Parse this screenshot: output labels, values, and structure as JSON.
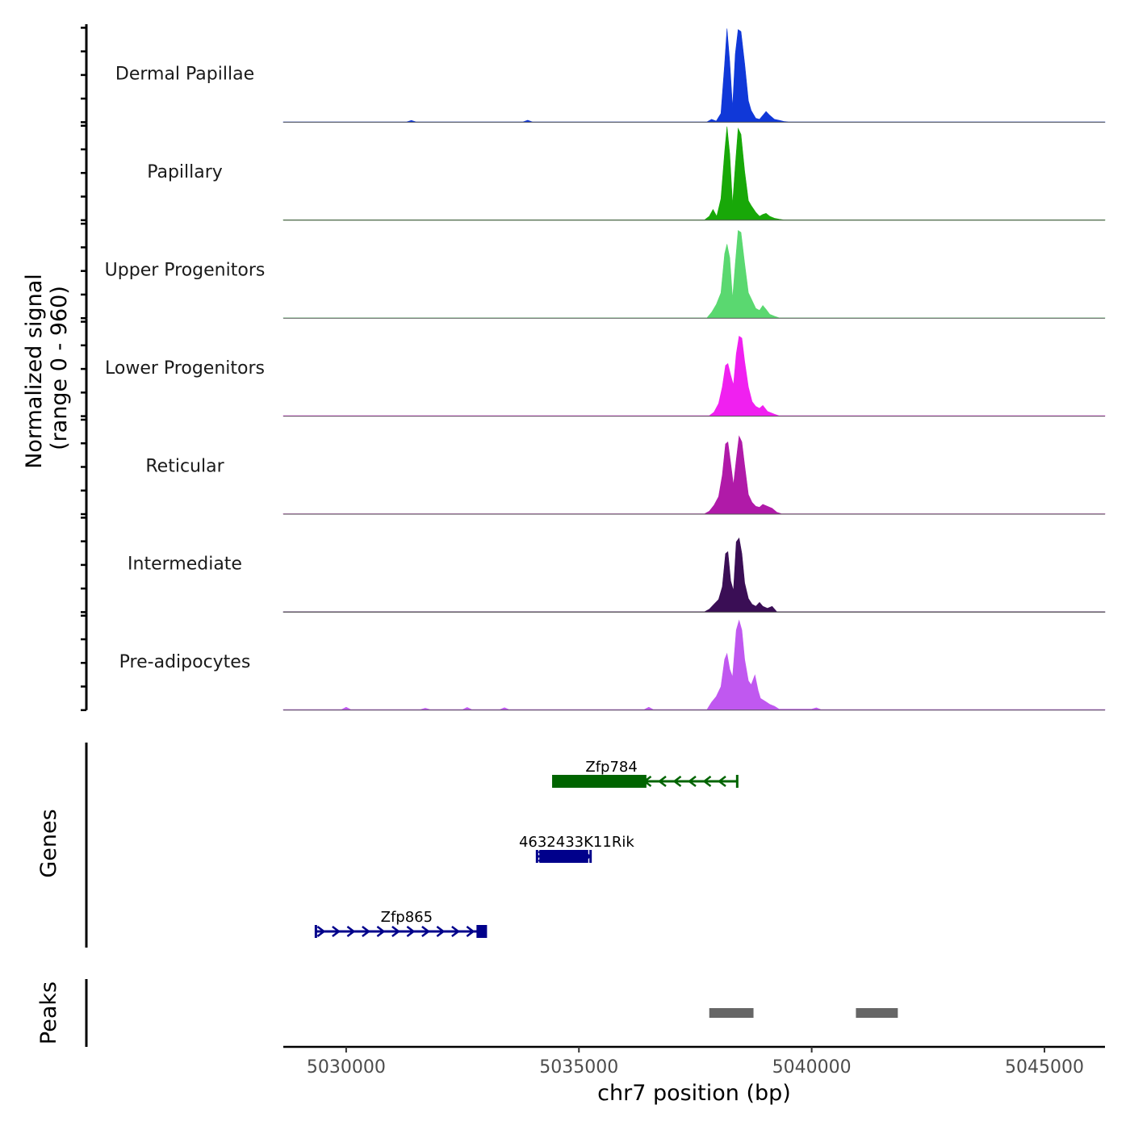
{
  "chart_data": {
    "type": "area",
    "title": "",
    "ylabel_line1": "Normalized signal",
    "ylabel_line2": "(range 0 - 960)",
    "xlabel": "chr7 position (bp)",
    "xlim": [
      5028650,
      5046300
    ],
    "x_ticks": [
      5030000,
      5035000,
      5040000,
      5045000
    ],
    "x_tick_labels": [
      "5030000",
      "5035000",
      "5040000",
      "5045000"
    ],
    "ylim": [
      0,
      960
    ],
    "tracks": [
      {
        "name": "Dermal Papillae",
        "color": "#1038d8",
        "x": [
          5028650,
          5031300,
          5031400,
          5031500,
          5033800,
          5033900,
          5034000,
          5037750,
          5037850,
          5037950,
          5038050,
          5038130,
          5038180,
          5038240,
          5038300,
          5038360,
          5038420,
          5038480,
          5038560,
          5038640,
          5038700,
          5038800,
          5038880,
          5038950,
          5039020,
          5039100,
          5039200,
          5039300,
          5039400,
          5039500,
          5046300
        ],
        "y": [
          3,
          3,
          18,
          3,
          3,
          20,
          3,
          3,
          30,
          12,
          90,
          600,
          960,
          620,
          150,
          700,
          950,
          930,
          600,
          220,
          120,
          40,
          30,
          70,
          110,
          70,
          30,
          20,
          8,
          3,
          3
        ]
      },
      {
        "name": "Papillary",
        "color": "#18a808",
        "x": [
          5028650,
          5037700,
          5037800,
          5037880,
          5037960,
          5038050,
          5038130,
          5038180,
          5038240,
          5038300,
          5038360,
          5038420,
          5038480,
          5038560,
          5038640,
          5038700,
          5038800,
          5038880,
          5038950,
          5039020,
          5039100,
          5039200,
          5039300,
          5039400,
          5046300
        ],
        "y": [
          3,
          3,
          40,
          110,
          40,
          220,
          700,
          960,
          680,
          160,
          560,
          940,
          880,
          500,
          200,
          150,
          80,
          40,
          60,
          70,
          40,
          20,
          10,
          3,
          3
        ]
      },
      {
        "name": "Upper Progenitors",
        "color": "#5ad870",
        "x": [
          5028650,
          5037750,
          5037850,
          5037950,
          5038050,
          5038130,
          5038180,
          5038240,
          5038300,
          5038360,
          5038420,
          5038480,
          5038560,
          5038640,
          5038700,
          5038800,
          5038880,
          5038950,
          5039020,
          5039100,
          5039200,
          5039300,
          5046300
        ],
        "y": [
          3,
          3,
          60,
          140,
          260,
          660,
          760,
          620,
          200,
          560,
          900,
          880,
          560,
          260,
          200,
          100,
          80,
          130,
          90,
          40,
          20,
          3,
          3
        ]
      },
      {
        "name": "Lower Progenitors",
        "color": "#f020f0",
        "x": [
          5028650,
          5037800,
          5037900,
          5038000,
          5038080,
          5038150,
          5038200,
          5038260,
          5038320,
          5038380,
          5038440,
          5038500,
          5038560,
          5038640,
          5038720,
          5038800,
          5038880,
          5038950,
          5039050,
          5039200,
          5039300,
          5046300
        ],
        "y": [
          4,
          4,
          40,
          130,
          300,
          520,
          540,
          420,
          320,
          640,
          820,
          800,
          560,
          300,
          150,
          100,
          80,
          110,
          50,
          20,
          4,
          4
        ]
      },
      {
        "name": "Reticular",
        "color": "#b01aa8",
        "x": [
          5028650,
          5037700,
          5037800,
          5037900,
          5038000,
          5038080,
          5038150,
          5038200,
          5038260,
          5038320,
          5038380,
          5038440,
          5038500,
          5038560,
          5038640,
          5038720,
          5038800,
          5038880,
          5038950,
          5039050,
          5039150,
          5039250,
          5039350,
          5046300
        ],
        "y": [
          4,
          4,
          30,
          90,
          180,
          400,
          720,
          740,
          520,
          300,
          560,
          800,
          740,
          500,
          200,
          120,
          80,
          70,
          100,
          80,
          60,
          20,
          4,
          4
        ]
      },
      {
        "name": "Intermediate",
        "color": "#3a0e55",
        "x": [
          5028650,
          5037700,
          5037800,
          5037900,
          5038000,
          5038080,
          5038150,
          5038200,
          5038260,
          5038320,
          5038380,
          5038440,
          5038500,
          5038560,
          5038640,
          5038720,
          5038800,
          5038880,
          5038950,
          5039050,
          5039150,
          5039250,
          5046300
        ],
        "y": [
          4,
          4,
          30,
          80,
          130,
          260,
          600,
          620,
          320,
          220,
          720,
          760,
          600,
          300,
          140,
          80,
          60,
          100,
          60,
          40,
          60,
          4,
          4
        ]
      },
      {
        "name": "Pre-adipocytes",
        "color": "#c058f0",
        "x": [
          5028650,
          5029900,
          5030000,
          5030100,
          5031600,
          5031700,
          5031800,
          5032500,
          5032600,
          5032700,
          5033300,
          5033400,
          5033500,
          5036400,
          5036500,
          5036600,
          5037750,
          5037850,
          5037950,
          5038050,
          5038130,
          5038180,
          5038240,
          5038300,
          5038380,
          5038440,
          5038500,
          5038560,
          5038640,
          5038700,
          5038780,
          5038850,
          5038900,
          5039000,
          5039100,
          5039200,
          5039300,
          5040000,
          5040100,
          5040200,
          5046300
        ],
        "y": [
          6,
          6,
          30,
          6,
          6,
          20,
          6,
          6,
          28,
          6,
          6,
          25,
          6,
          6,
          30,
          6,
          6,
          80,
          140,
          240,
          520,
          580,
          420,
          340,
          820,
          920,
          820,
          520,
          300,
          260,
          360,
          200,
          120,
          90,
          60,
          40,
          10,
          10,
          24,
          6,
          6
        ]
      }
    ],
    "genes_label": "Genes",
    "genes": [
      {
        "name": "Zfp784",
        "strand": "-",
        "start": 5034450,
        "end": 5038400,
        "thick_start": 5034450,
        "thick_end": 5036450,
        "color": "#006400"
      },
      {
        "name": "4632433K11Rik",
        "strand": "+",
        "start": 5034100,
        "end": 5035250,
        "thick_start": 5034150,
        "thick_end": 5035200,
        "color": "#00008b"
      },
      {
        "name": "Zfp865",
        "strand": "+",
        "start": 5029350,
        "end": 5033000,
        "thick_start": 5032800,
        "thick_end": 5033000,
        "color": "#00008b"
      }
    ],
    "peaks_label": "Peaks",
    "peaks_color": "#666666",
    "peaks": [
      {
        "start": 5037800,
        "end": 5038750
      },
      {
        "start": 5040950,
        "end": 5041850
      }
    ]
  }
}
